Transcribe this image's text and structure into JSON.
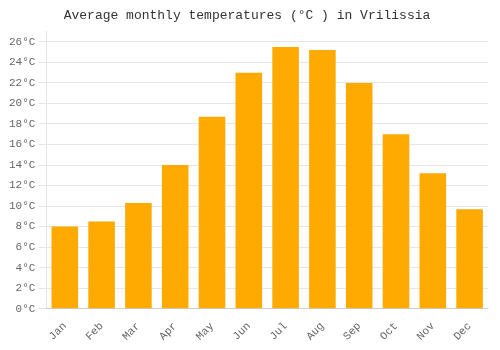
{
  "chart_data": {
    "type": "bar",
    "title": "Average monthly temperatures (°C ) in Vrilissia",
    "categories": [
      "Jan",
      "Feb",
      "Mar",
      "Apr",
      "May",
      "Jun",
      "Jul",
      "Aug",
      "Sep",
      "Oct",
      "Nov",
      "Dec"
    ],
    "values": [
      8.0,
      8.5,
      10.3,
      14.0,
      18.7,
      23.0,
      25.5,
      25.2,
      22.0,
      17.0,
      13.2,
      9.7
    ],
    "color": "#FFAA00",
    "ylim": [
      0,
      27
    ],
    "yticks": [
      {
        "value": 0,
        "label": "0°C"
      },
      {
        "value": 2,
        "label": "2°C"
      },
      {
        "value": 4,
        "label": "4°C"
      },
      {
        "value": 6,
        "label": "6°C"
      },
      {
        "value": 8,
        "label": "8°C"
      },
      {
        "value": 10,
        "label": "10°C"
      },
      {
        "value": 12,
        "label": "12°C"
      },
      {
        "value": 14,
        "label": "14°C"
      },
      {
        "value": 16,
        "label": "16°C"
      },
      {
        "value": 18,
        "label": "18°C"
      },
      {
        "value": 20,
        "label": "20°C"
      },
      {
        "value": 22,
        "label": "22°C"
      },
      {
        "value": 24,
        "label": "24°C"
      },
      {
        "value": 26,
        "label": "26°C"
      }
    ],
    "grid": true
  }
}
